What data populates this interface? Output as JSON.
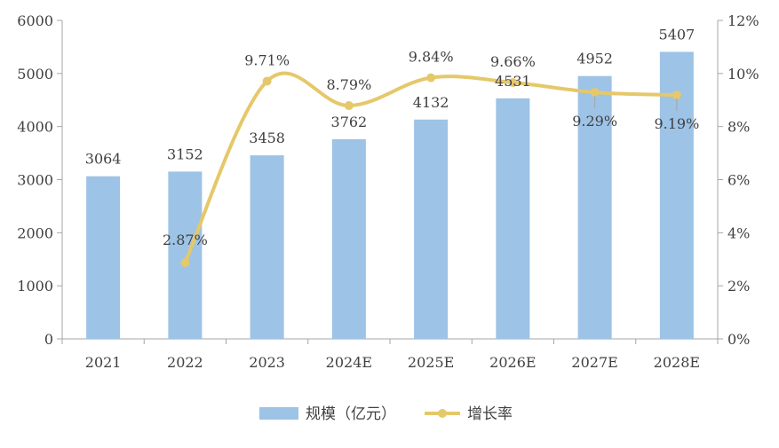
{
  "chart_data": {
    "type": "bar",
    "categories": [
      "2021",
      "2022",
      "2023",
      "2024E",
      "2025E",
      "2026E",
      "2027E",
      "2028E"
    ],
    "series": [
      {
        "name": "规模（亿元）",
        "type": "bar",
        "axis": "left",
        "color": "#9dc3e6",
        "values": [
          3064,
          3152,
          3458,
          3762,
          4132,
          4531,
          4952,
          5407
        ],
        "labels": [
          "3064",
          "3152",
          "3458",
          "3762",
          "4132",
          "4531",
          "4952",
          "5407"
        ]
      },
      {
        "name": "增长率",
        "type": "line",
        "axis": "right",
        "color": "#e5c86a",
        "smooth": true,
        "start_index": 1,
        "values": [
          null,
          2.87,
          9.71,
          8.79,
          9.84,
          9.66,
          9.29,
          9.19
        ],
        "labels": [
          null,
          "2.87%",
          "9.71%",
          "8.79%",
          "9.84%",
          "9.66%",
          "9.29%",
          "9.19%"
        ]
      }
    ],
    "y_left": {
      "min": 0,
      "max": 6000,
      "ticks": [
        "0",
        "1000",
        "2000",
        "3000",
        "4000",
        "5000",
        "6000"
      ]
    },
    "y_right": {
      "min": 0,
      "max": 12,
      "ticks": [
        "0%",
        "2%",
        "4%",
        "6%",
        "8%",
        "10%",
        "12%"
      ]
    },
    "grid": false,
    "legend": {
      "position": "bottom",
      "items": [
        "规模（亿元）",
        "增长率"
      ]
    },
    "title": "",
    "xlabel": "",
    "ylabel": ""
  }
}
